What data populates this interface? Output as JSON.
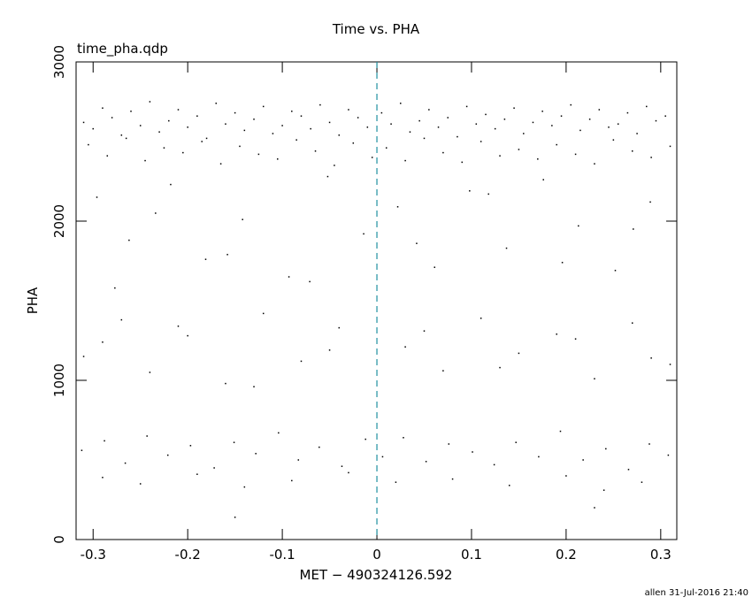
{
  "chart_data": {
    "type": "scatter",
    "title": "Time vs. PHA",
    "subtitle": "time_pha.qdp",
    "xlabel": "MET − 490324126.592",
    "ylabel": "PHA",
    "footer": "allen 31-Jul-2016 21:40",
    "xlim": [
      -0.318,
      0.317
    ],
    "ylim": [
      0,
      3000
    ],
    "xticks": [
      -0.3,
      -0.2,
      -0.1,
      0,
      0.1,
      0.2,
      0.3
    ],
    "yticks": [
      0,
      1000,
      2000,
      3000
    ],
    "vline": {
      "x": 0,
      "color": "#1f8fa0"
    },
    "color": "#000000",
    "x": [
      -0.31,
      -0.3,
      -0.29,
      -0.28,
      -0.27,
      -0.26,
      -0.25,
      -0.24,
      -0.23,
      -0.22,
      -0.21,
      -0.2,
      -0.19,
      -0.18,
      -0.17,
      -0.16,
      -0.15,
      -0.14,
      -0.13,
      -0.12,
      -0.11,
      -0.1,
      -0.09,
      -0.08,
      -0.07,
      -0.06,
      -0.05,
      -0.04,
      -0.03,
      -0.02,
      -0.01,
      0.005,
      0.015,
      0.025,
      0.035,
      0.045,
      0.055,
      0.065,
      0.075,
      0.085,
      0.095,
      0.105,
      0.115,
      0.125,
      0.135,
      0.145,
      0.155,
      0.165,
      0.175,
      0.185,
      0.195,
      0.205,
      0.215,
      0.225,
      0.235,
      0.245,
      0.255,
      0.265,
      0.275,
      0.285,
      0.295,
      0.305,
      -0.305,
      -0.285,
      -0.265,
      -0.245,
      -0.225,
      -0.205,
      -0.185,
      -0.165,
      -0.145,
      -0.125,
      -0.105,
      -0.085,
      -0.065,
      -0.045,
      -0.025,
      -0.005,
      0.01,
      0.03,
      0.05,
      0.07,
      0.09,
      0.11,
      0.13,
      0.15,
      0.17,
      0.19,
      0.21,
      0.23,
      0.25,
      0.27,
      0.29,
      0.31,
      -0.296,
      -0.262,
      -0.218,
      -0.181,
      -0.142,
      -0.093,
      -0.052,
      -0.014,
      0.022,
      0.061,
      0.098,
      0.137,
      0.176,
      0.213,
      0.252,
      0.289,
      -0.277,
      -0.234,
      -0.158,
      -0.071,
      0.042,
      0.118,
      0.196,
      0.271,
      -0.31,
      -0.27,
      -0.24,
      -0.2,
      -0.16,
      -0.12,
      -0.08,
      -0.04,
      0.03,
      0.07,
      0.11,
      0.15,
      0.19,
      0.23,
      0.27,
      0.31,
      -0.29,
      -0.21,
      -0.13,
      -0.05,
      0.05,
      0.13,
      0.21,
      0.29,
      -0.312,
      -0.288,
      -0.266,
      -0.243,
      -0.221,
      -0.197,
      -0.172,
      -0.151,
      -0.128,
      -0.104,
      -0.083,
      -0.061,
      -0.037,
      -0.012,
      0.006,
      0.028,
      0.052,
      0.076,
      0.101,
      0.124,
      0.147,
      0.171,
      0.194,
      0.218,
      0.242,
      0.266,
      0.288,
      0.308,
      -0.29,
      -0.25,
      -0.19,
      -0.14,
      -0.09,
      -0.03,
      0.02,
      0.08,
      0.14,
      0.2,
      0.24,
      0.28,
      -0.15,
      0.23
    ],
    "y": [
      2620,
      2580,
      2710,
      2650,
      2540,
      2690,
      2600,
      2750,
      2560,
      2630,
      2700,
      2590,
      2660,
      2520,
      2740,
      2610,
      2680,
      2570,
      2640,
      2720,
      2550,
      2600,
      2690,
      2660,
      2580,
      2730,
      2620,
      2540,
      2700,
      2650,
      2590,
      2680,
      2610,
      2740,
      2560,
      2630,
      2700,
      2590,
      2650,
      2530,
      2720,
      2610,
      2670,
      2580,
      2640,
      2710,
      2550,
      2620,
      2690,
      2600,
      2660,
      2730,
      2570,
      2640,
      2700,
      2590,
      2610,
      2680,
      2550,
      2720,
      2630,
      2660,
      2480,
      2410,
      2520,
      2380,
      2460,
      2430,
      2500,
      2360,
      2470,
      2420,
      2390,
      2510,
      2440,
      2350,
      2490,
      2400,
      2460,
      2380,
      2520,
      2430,
      2370,
      2500,
      2410,
      2450,
      2390,
      2480,
      2420,
      2360,
      2510,
      2440,
      2400,
      2470,
      2150,
      1880,
      2230,
      1760,
      2010,
      1650,
      2280,
      1920,
      2090,
      1710,
      2190,
      1830,
      2260,
      1970,
      1690,
      2120,
      1580,
      2050,
      1790,
      1620,
      1860,
      2170,
      1740,
      1950,
      1150,
      1380,
      1050,
      1280,
      980,
      1420,
      1120,
      1330,
      1210,
      1060,
      1390,
      1170,
      1290,
      1010,
      1360,
      1100,
      1240,
      1340,
      960,
      1190,
      1310,
      1080,
      1260,
      1140,
      560,
      620,
      480,
      650,
      530,
      590,
      450,
      610,
      540,
      670,
      500,
      580,
      460,
      630,
      520,
      640,
      490,
      600,
      550,
      470,
      610,
      520,
      680,
      500,
      570,
      440,
      600,
      530,
      390,
      350,
      410,
      330,
      370,
      420,
      360,
      380,
      340,
      400,
      310,
      360,
      140,
      200
    ]
  }
}
